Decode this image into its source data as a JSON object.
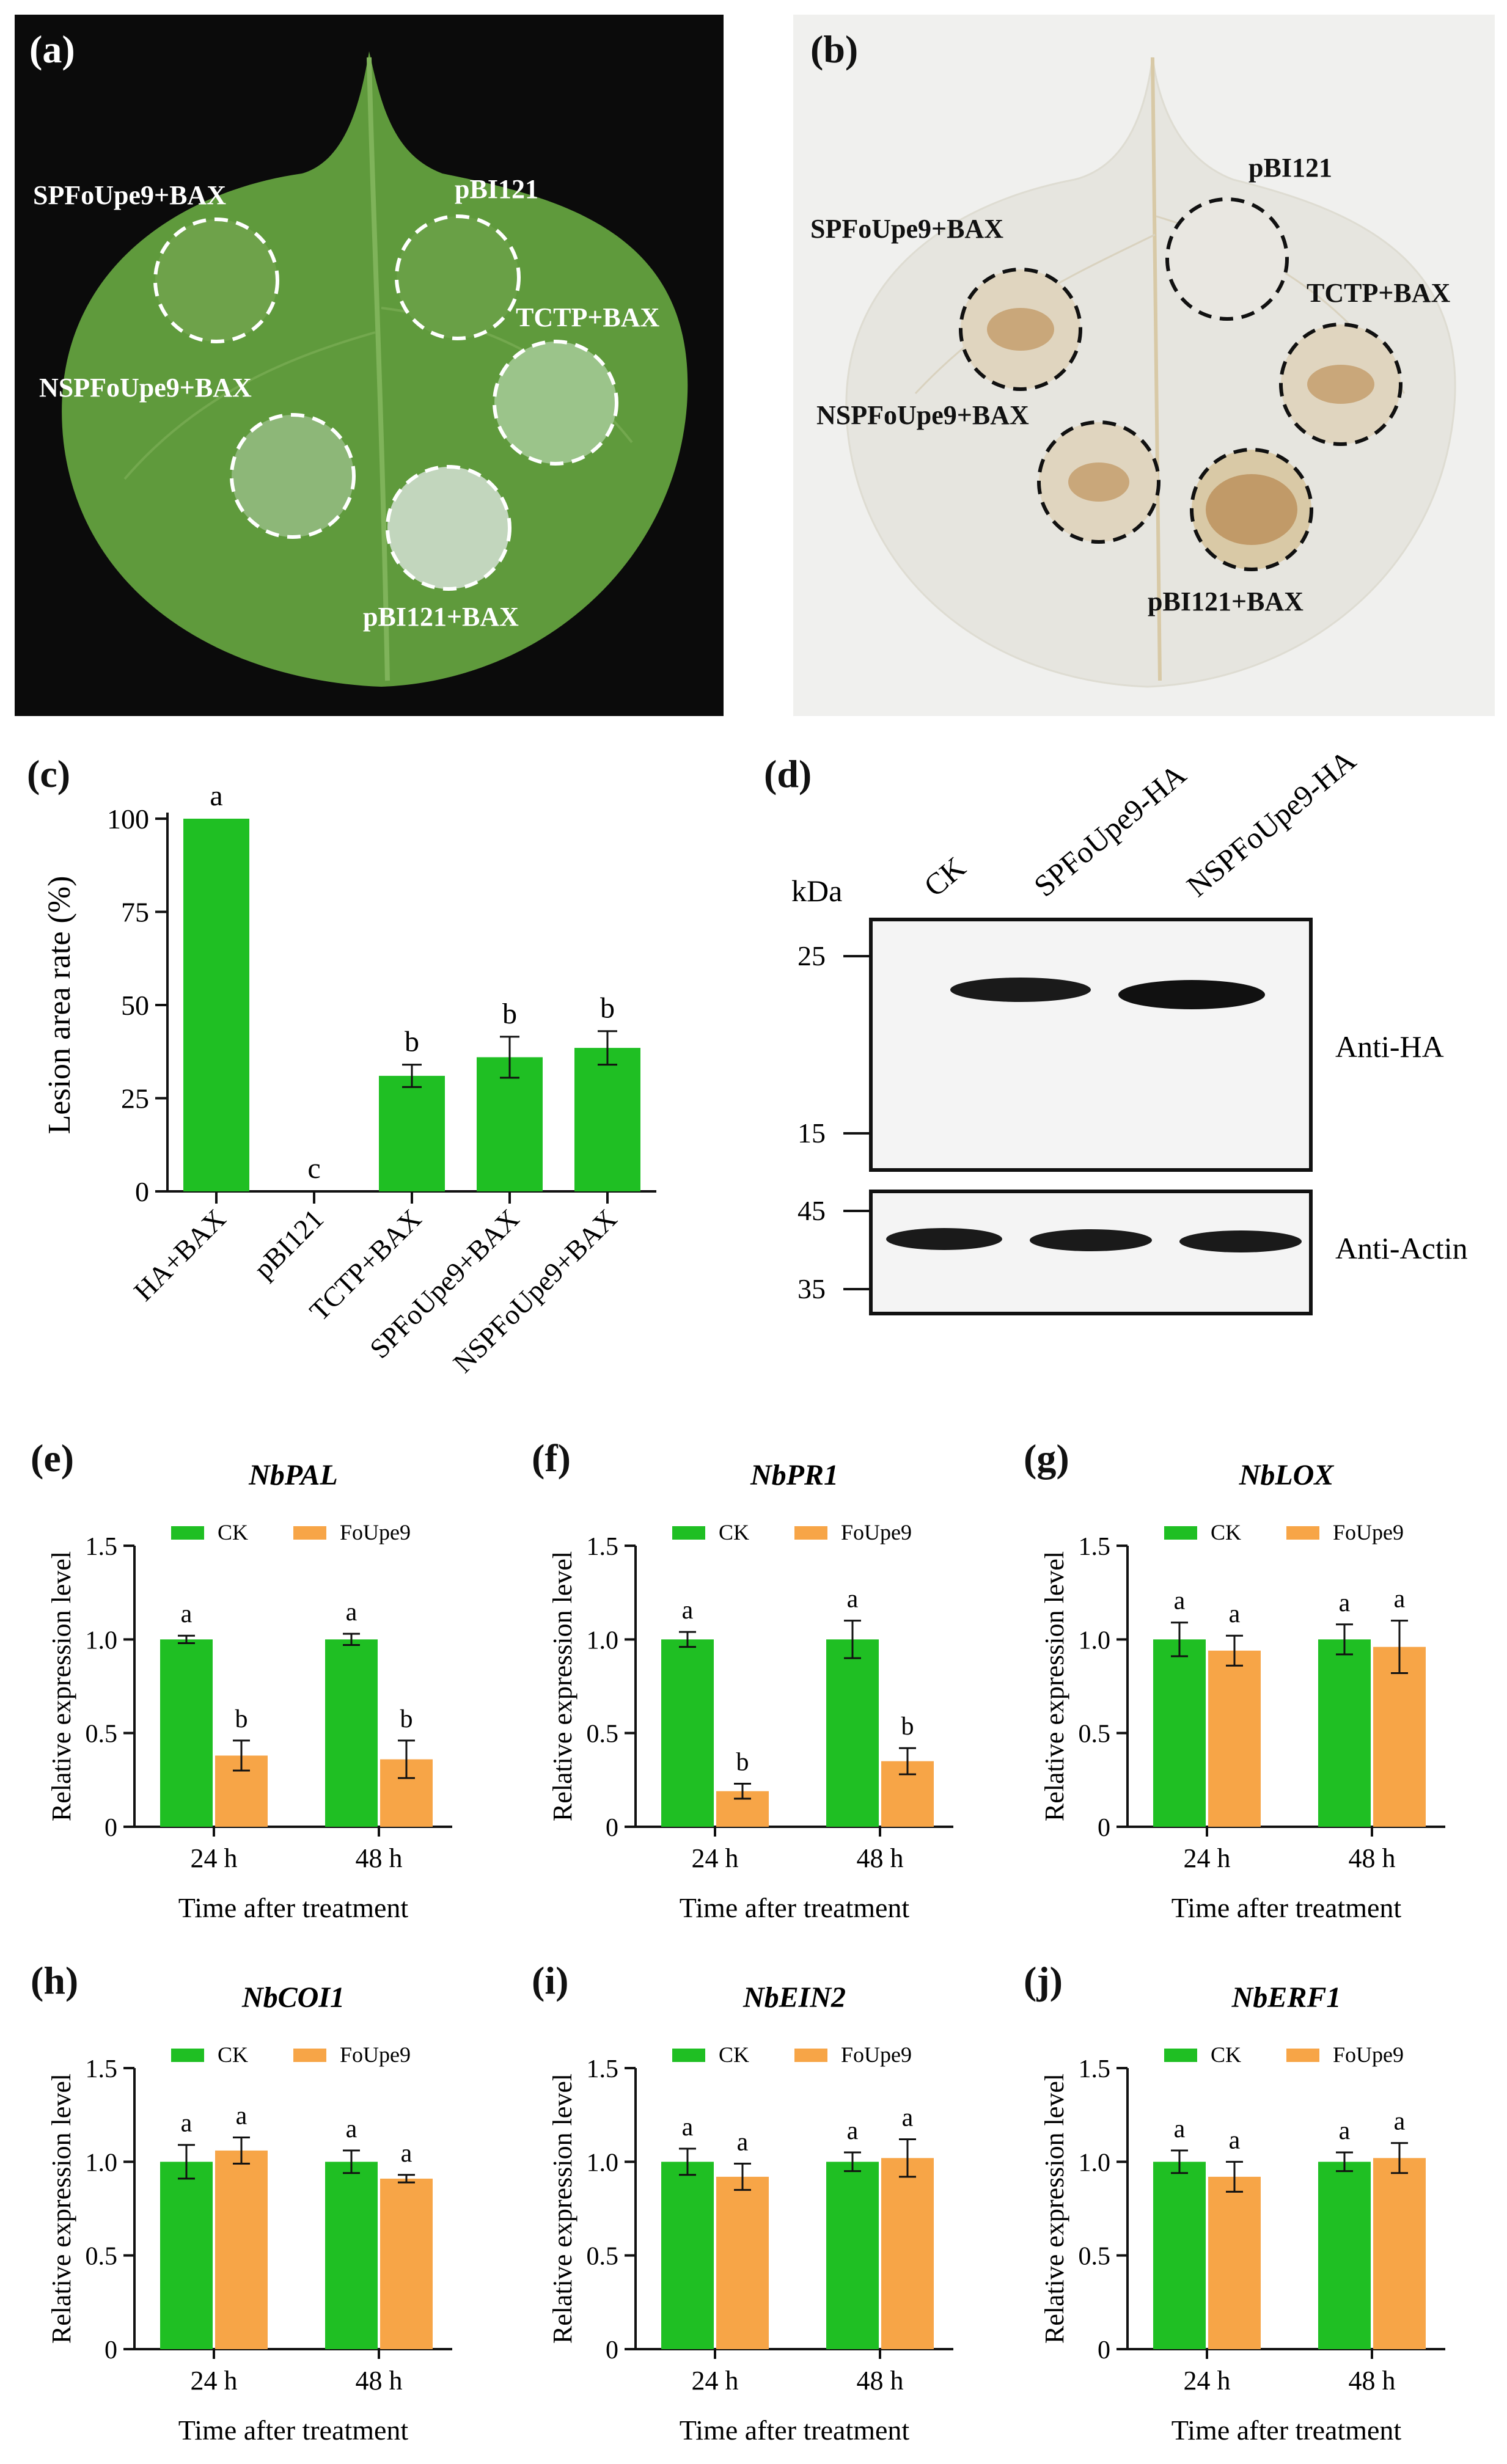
{
  "panels": {
    "a": {
      "label": "(a)",
      "spots": [
        "SPFoUpe9+BAX",
        "pBI121",
        "TCTP+BAX",
        "NSPFoUpe9+BAX",
        "pBI121+BAX"
      ],
      "colors": {
        "background": "#0b0b0b",
        "leaf": "#5f9a3c",
        "leaf_dark": "#4a7f2e",
        "circle": "#ffffff"
      }
    },
    "b": {
      "label": "(b)",
      "spots": [
        "pBI121",
        "SPFoUpe9+BAX",
        "TCTP+BAX",
        "NSPFoUpe9+BAX",
        "pBI121+BAX"
      ],
      "colors": {
        "background": "#f0f0ee",
        "leaf": "#e6e5df",
        "lesion": "#c9a77a",
        "circle": "#111111"
      }
    },
    "c": {
      "label": "(c)"
    },
    "d": {
      "label": "(d)",
      "kda_label": "kDa",
      "lanes": [
        "CK",
        "SPFoUpe9-HA",
        "NSPFoUpe9-HA"
      ],
      "top_blot": {
        "label": "Anti-HA",
        "markers": [
          "25",
          "15"
        ]
      },
      "bottom_blot": {
        "label": "Anti-Actin",
        "markers": [
          "45",
          "35"
        ]
      }
    },
    "e": {
      "label": "(e)"
    },
    "f": {
      "label": "(f)"
    },
    "g": {
      "label": "(g)"
    },
    "h": {
      "label": "(h)"
    },
    "i": {
      "label": "(i)"
    },
    "j": {
      "label": "(j)"
    }
  },
  "colors": {
    "green": "#1fbf23",
    "orange": "#f7a547"
  },
  "chart_data": [
    {
      "id": "c",
      "type": "bar",
      "ylabel": "Lesion area rate (%)",
      "categories": [
        "HA+BAX",
        "pBI121",
        "TCTP+BAX",
        "SPFoUpe9+BAX",
        "NSPFoUpe9+BAX"
      ],
      "values": [
        100,
        0,
        31,
        36,
        38.5
      ],
      "errors": [
        0,
        0,
        3,
        5.5,
        4.5
      ],
      "letters": [
        "a",
        "c",
        "b",
        "b",
        "b"
      ],
      "ylim": [
        0,
        100
      ],
      "yticks": [
        "0",
        "25",
        "50",
        "75",
        "100"
      ]
    },
    {
      "id": "e",
      "type": "bar",
      "title": "NbPAL",
      "xlabel": "Time after treatment",
      "ylabel": "Relative expression level",
      "categories": [
        "24 h",
        "48 h"
      ],
      "ylim": [
        0,
        1.5
      ],
      "yticks": [
        "0",
        "0.5",
        "1.0",
        "1.5"
      ],
      "series": [
        {
          "name": "CK",
          "values": [
            1.0,
            1.0
          ],
          "errors": [
            0.02,
            0.03
          ],
          "letters": [
            "a",
            "a"
          ]
        },
        {
          "name": "FoUpe9",
          "values": [
            0.38,
            0.36
          ],
          "errors": [
            0.08,
            0.1
          ],
          "letters": [
            "b",
            "b"
          ]
        }
      ]
    },
    {
      "id": "f",
      "type": "bar",
      "title": "NbPR1",
      "xlabel": "Time after treatment",
      "ylabel": "Relative expression level",
      "categories": [
        "24 h",
        "48 h"
      ],
      "ylim": [
        0,
        1.5
      ],
      "yticks": [
        "0",
        "0.5",
        "1.0",
        "1.5"
      ],
      "series": [
        {
          "name": "CK",
          "values": [
            1.0,
            1.0
          ],
          "errors": [
            0.04,
            0.1
          ],
          "letters": [
            "a",
            "a"
          ]
        },
        {
          "name": "FoUpe9",
          "values": [
            0.19,
            0.35
          ],
          "errors": [
            0.04,
            0.07
          ],
          "letters": [
            "b",
            "b"
          ]
        }
      ]
    },
    {
      "id": "g",
      "type": "bar",
      "title": "NbLOX",
      "xlabel": "Time after treatment",
      "ylabel": "Relative expression level",
      "categories": [
        "24 h",
        "48 h"
      ],
      "ylim": [
        0,
        1.5
      ],
      "yticks": [
        "0",
        "0.5",
        "1.0",
        "1.5"
      ],
      "series": [
        {
          "name": "CK",
          "values": [
            1.0,
            1.0
          ],
          "errors": [
            0.09,
            0.08
          ],
          "letters": [
            "a",
            "a"
          ]
        },
        {
          "name": "FoUpe9",
          "values": [
            0.94,
            0.96
          ],
          "errors": [
            0.08,
            0.14
          ],
          "letters": [
            "a",
            "a"
          ]
        }
      ]
    },
    {
      "id": "h",
      "type": "bar",
      "title": "NbCOI1",
      "xlabel": "Time after treatment",
      "ylabel": "Relative expression level",
      "categories": [
        "24 h",
        "48 h"
      ],
      "ylim": [
        0,
        1.5
      ],
      "yticks": [
        "0",
        "0.5",
        "1.0",
        "1.5"
      ],
      "series": [
        {
          "name": "CK",
          "values": [
            1.0,
            1.0
          ],
          "errors": [
            0.09,
            0.06
          ],
          "letters": [
            "a",
            "a"
          ]
        },
        {
          "name": "FoUpe9",
          "values": [
            1.06,
            0.91
          ],
          "errors": [
            0.07,
            0.02
          ],
          "letters": [
            "a",
            "a"
          ]
        }
      ]
    },
    {
      "id": "i",
      "type": "bar",
      "title": "NbEIN2",
      "xlabel": "Time after treatment",
      "ylabel": "Relative expression level",
      "categories": [
        "24 h",
        "48 h"
      ],
      "ylim": [
        0,
        1.5
      ],
      "yticks": [
        "0",
        "0.5",
        "1.0",
        "1.5"
      ],
      "series": [
        {
          "name": "CK",
          "values": [
            1.0,
            1.0
          ],
          "errors": [
            0.07,
            0.05
          ],
          "letters": [
            "a",
            "a"
          ]
        },
        {
          "name": "FoUpe9",
          "values": [
            0.92,
            1.02
          ],
          "errors": [
            0.07,
            0.1
          ],
          "letters": [
            "a",
            "a"
          ]
        }
      ]
    },
    {
      "id": "j",
      "type": "bar",
      "title": "NbERF1",
      "xlabel": "Time after treatment",
      "ylabel": "Relative expression level",
      "categories": [
        "24 h",
        "48 h"
      ],
      "ylim": [
        0,
        1.5
      ],
      "yticks": [
        "0",
        "0.5",
        "1.0",
        "1.5"
      ],
      "series": [
        {
          "name": "CK",
          "values": [
            1.0,
            1.0
          ],
          "errors": [
            0.06,
            0.05
          ],
          "letters": [
            "a",
            "a"
          ]
        },
        {
          "name": "FoUpe9",
          "values": [
            0.92,
            1.02
          ],
          "errors": [
            0.08,
            0.08
          ],
          "letters": [
            "a",
            "a"
          ]
        }
      ]
    }
  ]
}
